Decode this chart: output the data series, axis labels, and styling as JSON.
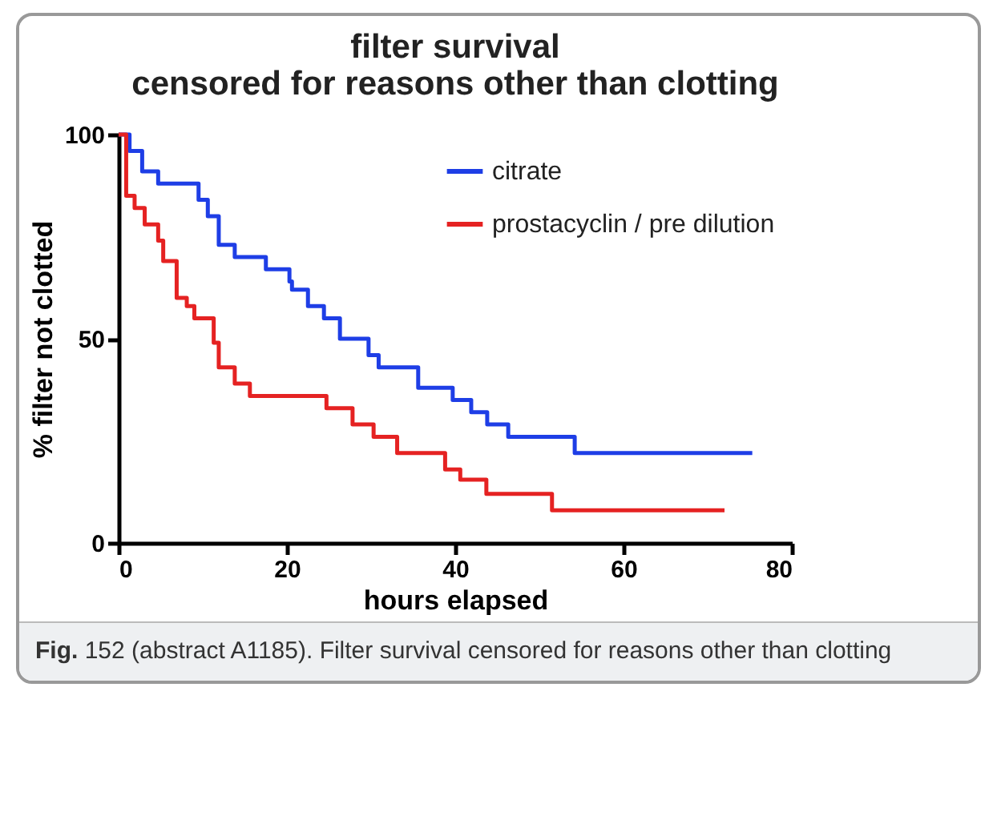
{
  "chart_data": {
    "type": "step",
    "title": [
      "filter  survival",
      "censored for reasons other than clotting"
    ],
    "xlabel": "hours elapsed",
    "ylabel": "% filter not clotted",
    "annotations": [
      "Fig. 152 (abstract A1185). Filter survival censored for reasons other than clotting"
    ],
    "xlim": [
      0,
      80
    ],
    "xticks": [
      0,
      20,
      40,
      60,
      80
    ],
    "ylim": [
      0,
      100
    ],
    "yticks": [
      0,
      50,
      100
    ],
    "grid": false,
    "legend": "top right",
    "series": [
      {
        "name": "citrate",
        "color": "#1e3ee6",
        "x": [
          0,
          1.3,
          2.8,
          4.7,
          9.5,
          10.6,
          11.9,
          13.8,
          17.5,
          20.3,
          20.6,
          22.5,
          24.4,
          26.3,
          29.7,
          30.9,
          35.6,
          39.7,
          41.9,
          43.8,
          46.3,
          54.2,
          75.3
        ],
        "values": [
          100,
          96,
          91,
          88,
          84,
          80,
          73,
          70,
          67,
          64,
          62,
          58,
          55,
          50,
          46,
          43,
          38,
          35,
          32,
          29,
          26,
          22,
          22
        ]
      },
      {
        "name": "prostacyclin / pre dilution",
        "color": "#e52222",
        "x": [
          0,
          0.9,
          1.9,
          3.1,
          4.7,
          5.3,
          6.9,
          8.1,
          9,
          11.3,
          11.9,
          13.8,
          15.6,
          24.7,
          27.8,
          30.3,
          33.1,
          38.8,
          40.6,
          43.7,
          51.5,
          72
        ],
        "values": [
          100,
          85,
          82,
          78,
          74,
          69,
          60,
          58,
          55,
          49,
          43,
          39,
          36,
          33,
          29,
          26,
          22,
          18,
          15.5,
          12,
          8,
          8
        ]
      }
    ]
  }
}
